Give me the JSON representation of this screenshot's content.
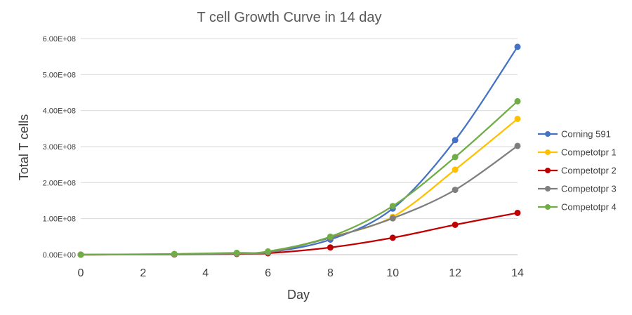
{
  "chart_data": {
    "type": "line",
    "title": "T cell Growth Curve in 14 day",
    "xlabel": "Day",
    "ylabel": "Total T cells",
    "xlim": [
      0,
      14
    ],
    "ylim": [
      0,
      600000000
    ],
    "xticks": [
      0,
      2,
      4,
      6,
      8,
      10,
      12,
      14
    ],
    "xtick_labels": [
      "0",
      "2",
      "4",
      "6",
      "8",
      "10",
      "12",
      "14"
    ],
    "yticks": [
      0,
      100000000,
      200000000,
      300000000,
      400000000,
      500000000,
      600000000
    ],
    "ytick_labels": [
      "0.00E+00",
      "1.00E+08",
      "2.00E+08",
      "3.00E+08",
      "4.00E+08",
      "5.00E+08",
      "6.00E+08"
    ],
    "grid": "horizontal",
    "legend_position": "right",
    "x": [
      0,
      3,
      5,
      6,
      8,
      10,
      12,
      14
    ],
    "series": [
      {
        "name": "Corning 591",
        "color": "#4472C4",
        "values": [
          0,
          1000000,
          3000000,
          6000000,
          42000000,
          128000000,
          318000000,
          577000000
        ]
      },
      {
        "name": "Competotpr 1",
        "color": "#FFC000",
        "values": [
          0,
          1000000,
          3000000,
          6000000,
          48000000,
          105000000,
          236000000,
          377000000
        ]
      },
      {
        "name": "Competotpr 2",
        "color": "#C00000",
        "values": [
          0,
          500000,
          2000000,
          4000000,
          20000000,
          47000000,
          83000000,
          116000000
        ]
      },
      {
        "name": "Competotpr 3",
        "color": "#7F7F7F",
        "values": [
          0,
          1000000,
          3000000,
          6000000,
          47000000,
          101000000,
          180000000,
          302000000
        ]
      },
      {
        "name": "Competotpr 4",
        "color": "#70AD47",
        "values": [
          0,
          2000000,
          5000000,
          9000000,
          50000000,
          135000000,
          271000000,
          426000000
        ]
      }
    ]
  }
}
